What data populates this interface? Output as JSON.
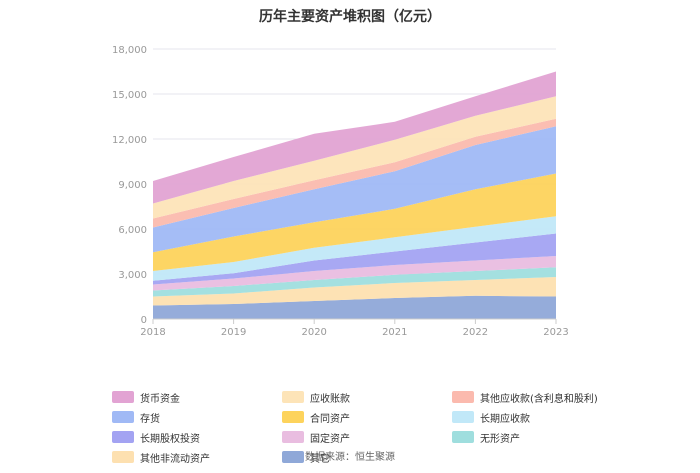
{
  "chart_data": {
    "type": "area",
    "stacked": true,
    "title": "历年主要资产堆积图（亿元）",
    "x": [
      "2018",
      "2019",
      "2020",
      "2021",
      "2022",
      "2023"
    ],
    "y_ticks": [
      "0",
      "3,000",
      "6,000",
      "9,000",
      "12,000",
      "15,000",
      "18,000"
    ],
    "ylim": [
      0,
      18000
    ],
    "grid": true,
    "legend_position": "bottom",
    "series": [
      {
        "name": "其它",
        "color": "#8fa8d8",
        "values": [
          900,
          1000,
          1200,
          1400,
          1550,
          1500
        ]
      },
      {
        "name": "其他非流动资产",
        "color": "#fde0b0",
        "values": [
          600,
          700,
          900,
          1000,
          1050,
          1300
        ]
      },
      {
        "name": "无形资产",
        "color": "#9fdede",
        "values": [
          400,
          500,
          500,
          550,
          600,
          650
        ]
      },
      {
        "name": "固定资产",
        "color": "#e9bde0",
        "values": [
          400,
          500,
          600,
          650,
          700,
          750
        ]
      },
      {
        "name": "长期股权投资",
        "color": "#a3a3f2",
        "values": [
          250,
          350,
          700,
          900,
          1200,
          1500
        ]
      },
      {
        "name": "长期应收款",
        "color": "#c1e8f8",
        "values": [
          650,
          750,
          850,
          950,
          1050,
          1150
        ]
      },
      {
        "name": "合同资产",
        "color": "#fdd35c",
        "values": [
          1250,
          1700,
          1700,
          1900,
          2500,
          2850
        ]
      },
      {
        "name": "存货",
        "color": "#a0b9f5",
        "values": [
          1650,
          1900,
          2200,
          2500,
          2950,
          3150
        ]
      },
      {
        "name": "其他应收款(含利息和股利)",
        "color": "#fbbaae",
        "values": [
          600,
          600,
          600,
          600,
          550,
          500
        ]
      },
      {
        "name": "应收账款",
        "color": "#fde4b8",
        "values": [
          1000,
          1200,
          1300,
          1500,
          1400,
          1500
        ]
      },
      {
        "name": "货币资金",
        "color": "#e2a3d3",
        "values": [
          1500,
          1600,
          1800,
          1200,
          1300,
          1650
        ]
      }
    ]
  },
  "legend": [
    {
      "label": "货币资金",
      "color": "#e2a3d3"
    },
    {
      "label": "应收账款",
      "color": "#fde4b8"
    },
    {
      "label": "其他应收款(含利息和股利)",
      "color": "#fbbaae"
    },
    {
      "label": "存货",
      "color": "#a0b9f5"
    },
    {
      "label": "合同资产",
      "color": "#fdd35c"
    },
    {
      "label": "长期应收款",
      "color": "#c1e8f8"
    },
    {
      "label": "长期股权投资",
      "color": "#a3a3f2"
    },
    {
      "label": "固定资产",
      "color": "#e9bde0"
    },
    {
      "label": "无形资产",
      "color": "#9fdede"
    },
    {
      "label": "其他非流动资产",
      "color": "#fde0b0"
    },
    {
      "label": "其它",
      "color": "#8fa8d8"
    }
  ],
  "source": "数据来源：恒生聚源"
}
